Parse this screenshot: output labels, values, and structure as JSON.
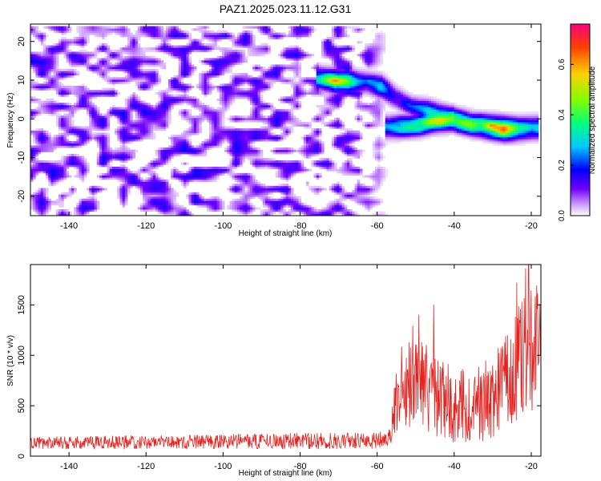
{
  "figure": {
    "title": "PAZ1.2025.023.11.12.G31"
  },
  "chart_data": [
    {
      "type": "heatmap",
      "xlabel": "Height of straight line (km)",
      "ylabel": "Frequency (Hz)",
      "xlim": [
        -150,
        -17.5
      ],
      "ylim": [
        -25,
        24.5
      ],
      "xticks": [
        -140,
        -120,
        -100,
        -80,
        -60,
        -40,
        -20
      ],
      "yticks": [
        -20,
        -10,
        0,
        10,
        20
      ],
      "colorbar": {
        "label": "Normalized spectral amplitude",
        "range": [
          0,
          0.76
        ],
        "ticks": [
          0.0,
          0.2,
          0.4,
          0.6
        ],
        "tick_labels": [
          "0.0",
          "0.2",
          "0.4",
          "0.6"
        ],
        "colors": [
          "#ffffff",
          "#cc99ff",
          "#7000ff",
          "#0000ff",
          "#00c8ff",
          "#00ff80",
          "#80ff00",
          "#ffd000",
          "#ff4000",
          "#ff0080"
        ]
      },
      "noise_region": {
        "x_range": [
          -150,
          -57
        ],
        "freq_range": [
          -25,
          24
        ],
        "typical_amplitude": [
          0.02,
          0.12
        ]
      },
      "ridge": [
        {
          "x": -75,
          "freq": 10.5,
          "amp": 0.3
        },
        {
          "x": -71,
          "freq": 9.8,
          "amp": 0.55
        },
        {
          "x": -67,
          "freq": 9.8,
          "amp": 0.35
        },
        {
          "x": -63,
          "freq": 9.5,
          "amp": 0.2
        },
        {
          "x": -59,
          "freq": 8.5,
          "amp": 0.3
        },
        {
          "x": -55,
          "freq": 5.5,
          "amp": 0.15
        },
        {
          "x": -51,
          "freq": 3.0,
          "amp": 0.2
        },
        {
          "x": -47,
          "freq": 2.0,
          "amp": 0.3
        },
        {
          "x": -43,
          "freq": 0.8,
          "amp": 0.38
        },
        {
          "x": -39,
          "freq": -0.5,
          "amp": 0.45
        },
        {
          "x": -35,
          "freq": -1.5,
          "amp": 0.4
        },
        {
          "x": -31,
          "freq": -2.0,
          "amp": 0.5
        },
        {
          "x": -27,
          "freq": -2.5,
          "amp": 0.7
        },
        {
          "x": -23,
          "freq": -2.5,
          "amp": 0.35
        },
        {
          "x": -19,
          "freq": -2.3,
          "amp": 0.3
        }
      ],
      "ridge2": [
        {
          "x": -57,
          "freq": -2.0,
          "amp": 0.25
        },
        {
          "x": -53,
          "freq": -1.8,
          "amp": 0.35
        },
        {
          "x": -49,
          "freq": -1.5,
          "amp": 0.4
        },
        {
          "x": -45,
          "freq": -0.5,
          "amp": 0.45
        },
        {
          "x": -41,
          "freq": 0.0,
          "amp": 0.5
        }
      ]
    },
    {
      "type": "line",
      "xlabel": "Height of straight line (km)",
      "ylabel": "SNR (10 * v/v)",
      "xlim": [
        -150,
        -17.5
      ],
      "ylim": [
        0,
        1900
      ],
      "xticks": [
        -140,
        -120,
        -100,
        -80,
        -60,
        -40,
        -20
      ],
      "yticks": [
        0,
        500,
        1000,
        1500
      ],
      "series": [
        {
          "color": "#e8221f",
          "envelope": [
            {
              "x": -150,
              "mean": 130,
              "spread": 60
            },
            {
              "x": -110,
              "mean": 140,
              "spread": 70
            },
            {
              "x": -80,
              "mean": 150,
              "spread": 80
            },
            {
              "x": -60,
              "mean": 150,
              "spread": 80
            },
            {
              "x": -56.5,
              "mean": 200,
              "spread": 100
            },
            {
              "x": -55,
              "mean": 650,
              "spread": 400
            },
            {
              "x": -50,
              "mean": 760,
              "spread": 450
            },
            {
              "x": -45,
              "mean": 620,
              "spread": 420
            },
            {
              "x": -40,
              "mean": 500,
              "spread": 380
            },
            {
              "x": -35,
              "mean": 500,
              "spread": 360
            },
            {
              "x": -30,
              "mean": 580,
              "spread": 420
            },
            {
              "x": -25,
              "mean": 850,
              "spread": 550
            },
            {
              "x": -20,
              "mean": 1050,
              "spread": 650
            },
            {
              "x": -17.5,
              "mean": 1250,
              "spread": 400
            }
          ],
          "peaks": [
            {
              "x": -50.7,
              "y": 1290
            },
            {
              "x": -49.2,
              "y": 1400
            },
            {
              "x": -45.3,
              "y": 1500
            },
            {
              "x": -23.8,
              "y": 1720
            },
            {
              "x": -21.5,
              "y": 1860
            },
            {
              "x": -20.7,
              "y": 1910
            },
            {
              "x": -18.6,
              "y": 1690
            }
          ]
        }
      ]
    }
  ]
}
